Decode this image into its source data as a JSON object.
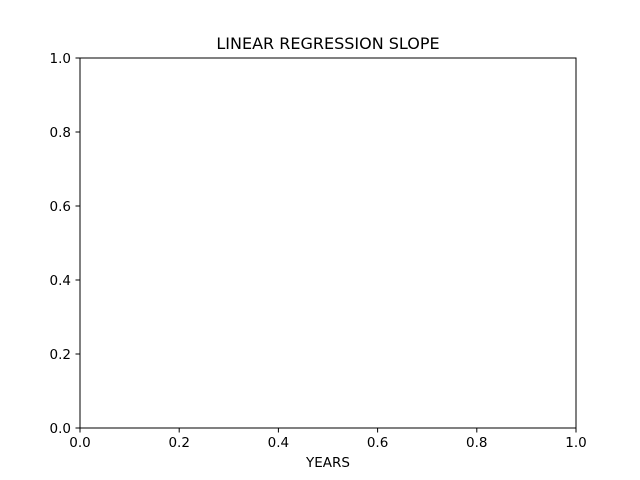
{
  "chart_data": {
    "type": "line",
    "title": "LINEAR REGRESSION SLOPE",
    "xlabel": "YEARS",
    "ylabel": "",
    "xlim": [
      0.0,
      1.0
    ],
    "ylim": [
      0.0,
      1.0
    ],
    "x_ticks": [
      "0.0",
      "0.2",
      "0.4",
      "0.6",
      "0.8",
      "1.0"
    ],
    "y_ticks": [
      "0.0",
      "0.2",
      "0.4",
      "0.6",
      "0.8",
      "1.0"
    ],
    "series": [],
    "grid": false,
    "colors": {
      "axis": "#000000",
      "background": "#ffffff"
    }
  }
}
